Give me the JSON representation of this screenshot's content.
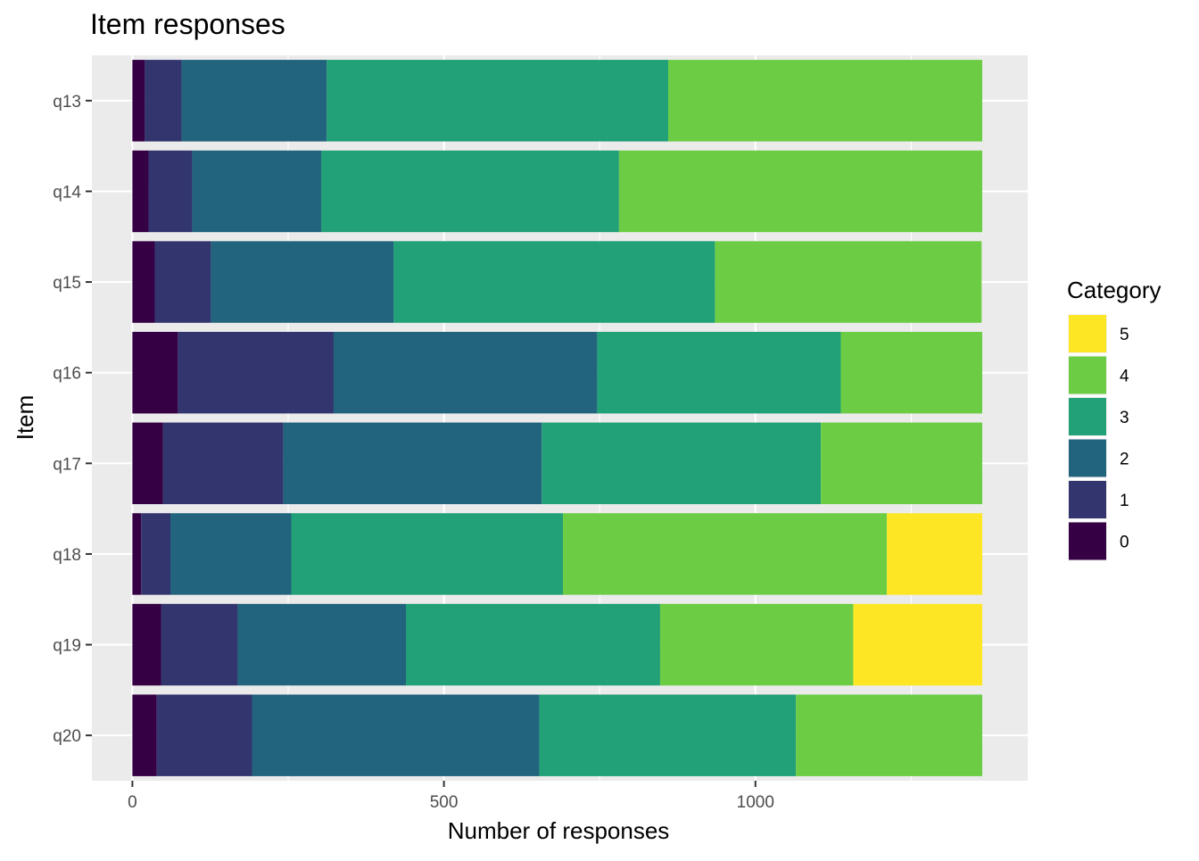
{
  "chart_data": {
    "type": "bar",
    "orientation": "horizontal",
    "stacked": true,
    "title": "Item responses",
    "xlabel": "Number of responses",
    "ylabel": "Item",
    "xlim": [
      -65,
      1437
    ],
    "xticks": [
      0,
      500,
      1000
    ],
    "grid": true,
    "legend": {
      "title": "Category",
      "placement": "right",
      "entries": [
        {
          "label": "5",
          "color": "#FDE725"
        },
        {
          "label": "4",
          "color": "#6CCD44"
        },
        {
          "label": "3",
          "color": "#22A077"
        },
        {
          "label": "2",
          "color": "#22647D"
        },
        {
          "label": "1",
          "color": "#33356F"
        },
        {
          "label": "0",
          "color": "#350044"
        }
      ]
    },
    "categories": [
      "q13",
      "q14",
      "q15",
      "q16",
      "q17",
      "q18",
      "q19",
      "q20"
    ],
    "series": [
      {
        "name": "0",
        "color": "#350044",
        "values": [
          20,
          26,
          36,
          73,
          49,
          14,
          46,
          39
        ]
      },
      {
        "name": "1",
        "color": "#33356F",
        "values": [
          59,
          70,
          90,
          250,
          193,
          47,
          123,
          153
        ]
      },
      {
        "name": "2",
        "color": "#22647D",
        "values": [
          233,
          207,
          293,
          423,
          415,
          194,
          270,
          461
        ]
      },
      {
        "name": "3",
        "color": "#22A077",
        "values": [
          548,
          478,
          516,
          391,
          448,
          436,
          408,
          412
        ]
      },
      {
        "name": "4",
        "color": "#6CCD44",
        "values": [
          504,
          583,
          428,
          227,
          259,
          520,
          310,
          299
        ]
      },
      {
        "name": "5",
        "color": "#FDE725",
        "values": [
          0,
          0,
          0,
          0,
          0,
          153,
          207,
          0
        ]
      }
    ]
  }
}
